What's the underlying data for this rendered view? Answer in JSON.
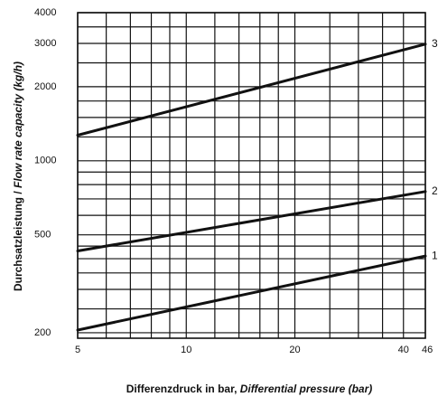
{
  "chart_data": {
    "type": "line",
    "xscale": "log",
    "yscale": "log",
    "xlim": [
      5,
      46
    ],
    "ylim": [
      190,
      4000
    ],
    "xlabel_de": "Differenzdruck in bar, ",
    "xlabel_en": "Differential pressure (bar)",
    "ylabel_de": "Durchsatzleistung / ",
    "ylabel_en": "Flow rate capacity (kg/h)",
    "xticks": [
      {
        "value": 5,
        "label": "5"
      },
      {
        "value": 10,
        "label": "10"
      },
      {
        "value": 20,
        "label": "20"
      },
      {
        "value": 40,
        "label": "40"
      },
      {
        "value": 46,
        "label": "46"
      }
    ],
    "yticks": [
      {
        "value": 200,
        "label": "200"
      },
      {
        "value": 500,
        "label": "500"
      },
      {
        "value": 1000,
        "label": "1000"
      },
      {
        "value": 2000,
        "label": "2000"
      },
      {
        "value": 3000,
        "label": "3000"
      },
      {
        "value": 4000,
        "label": "4000"
      }
    ],
    "x_gridlines": [
      5,
      6,
      7,
      8,
      9,
      10,
      12,
      14,
      16,
      18,
      20,
      25,
      30,
      35,
      40,
      46
    ],
    "y_gridlines": [
      200,
      250,
      300,
      350,
      400,
      450,
      500,
      600,
      700,
      800,
      900,
      1000,
      1250,
      1500,
      1750,
      2000,
      2500,
      3000,
      3500,
      4000
    ],
    "grid": true,
    "series": [
      {
        "name": "1",
        "x": [
          5,
          46
        ],
        "y": [
          205,
          410
        ]
      },
      {
        "name": "2",
        "x": [
          5,
          46
        ],
        "y": [
          430,
          750
        ]
      },
      {
        "name": "3",
        "x": [
          5,
          46
        ],
        "y": [
          1270,
          2980
        ]
      }
    ]
  }
}
